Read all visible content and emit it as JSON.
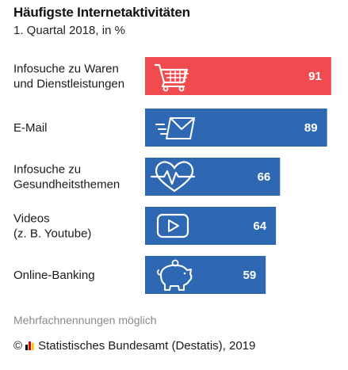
{
  "title": "Häufigste Internetaktivitäten",
  "subtitle": "1. Quartal 2018, in %",
  "note": "Mehrfachnennungen möglich",
  "source": {
    "copyright": "©",
    "text": "Statistisches Bundesamt (Destatis), 2019"
  },
  "colors": {
    "highlight": "#f04b4f",
    "bar": "#2f68b2",
    "icon_stroke": "#ffffff"
  },
  "chart_data": {
    "type": "bar",
    "orientation": "horizontal",
    "categories": [
      [
        "Infosuche zu Waren",
        "und Dienstleistungen"
      ],
      [
        "E-Mail"
      ],
      [
        "Infosuche zu",
        "Gesundheitsthemen"
      ],
      [
        "Videos",
        "(z. B. Youtube)"
      ],
      [
        "Online-Banking"
      ]
    ],
    "values": [
      91,
      89,
      66,
      64,
      59
    ],
    "icons": [
      "shopping-cart-icon",
      "email-icon",
      "heart-pulse-icon",
      "video-play-icon",
      "piggy-bank-icon"
    ],
    "highlight_index": 0,
    "xlim": [
      0,
      100
    ],
    "grid": false,
    "legend": "none"
  }
}
